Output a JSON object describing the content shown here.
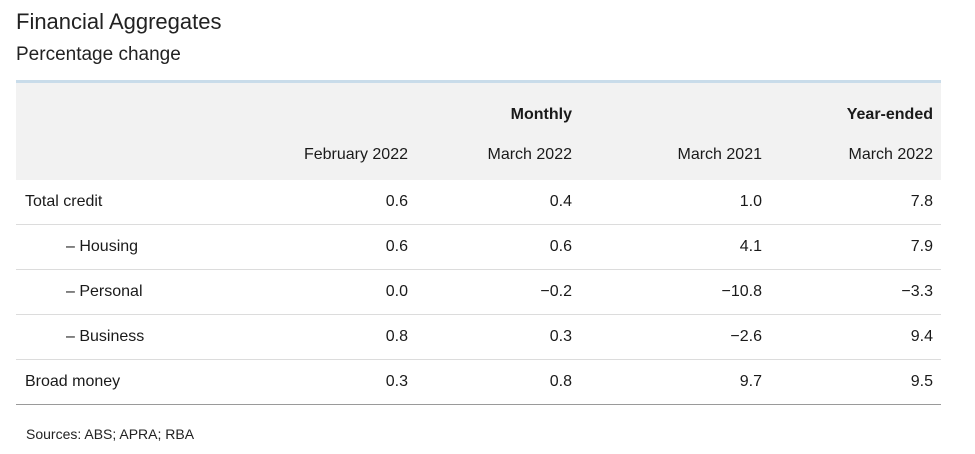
{
  "header": {
    "title": "Financial Aggregates",
    "subtitle": "Percentage change"
  },
  "table": {
    "group_headers": {
      "monthly": "Monthly",
      "year_ended": "Year-ended"
    },
    "period_headers": [
      "February 2022",
      "March 2022",
      "March 2021",
      "March 2022"
    ],
    "rows": [
      {
        "label": "Total credit",
        "values": [
          "0.6",
          "0.4",
          "1.0",
          "7.8"
        ]
      },
      {
        "label": "– Housing",
        "values": [
          "0.6",
          "0.6",
          "4.1",
          "7.9"
        ]
      },
      {
        "label": "– Personal",
        "values": [
          "0.0",
          "−0.2",
          "−10.8",
          "−3.3"
        ]
      },
      {
        "label": "– Business",
        "values": [
          "0.8",
          "0.3",
          "−2.6",
          "9.4"
        ]
      },
      {
        "label": "Broad money",
        "values": [
          "0.3",
          "0.8",
          "9.7",
          "9.5"
        ]
      }
    ]
  },
  "footer": {
    "sources": "Sources: ABS; APRA; RBA"
  },
  "colors": {
    "header_background": "#f2f2f2",
    "top_rule": "#c9dcea"
  }
}
